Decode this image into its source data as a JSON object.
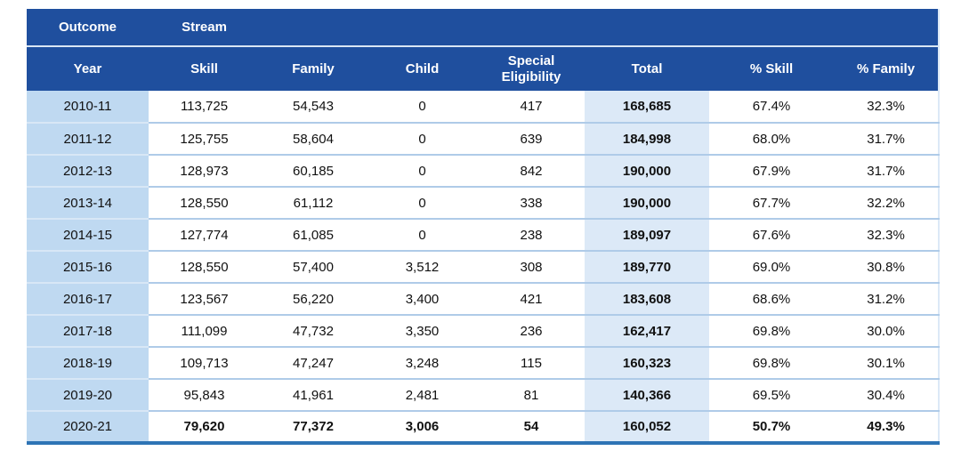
{
  "colors": {
    "header_bg": "#1F4F9E",
    "header_text": "#FFFFFF",
    "header_divider": "#D9E6F4",
    "year_col_bg": "#BFD9F1",
    "total_col_bg": "#DCE9F7",
    "row_divider": "#AFCBE8",
    "bottom_border": "#2E74B5",
    "body_text": "#111111"
  },
  "table": {
    "group_header": {
      "outcome": "Outcome",
      "stream": "Stream"
    },
    "columns": [
      "Year",
      "Skill",
      "Family",
      "Child",
      "Special Eligibility",
      "Total",
      "% Skill",
      "% Family"
    ],
    "rows": [
      {
        "cells": [
          "2010-11",
          "113,725",
          "54,543",
          "0",
          "417",
          "168,685",
          "67.4%",
          "32.3%"
        ],
        "bold": false
      },
      {
        "cells": [
          "2011-12",
          "125,755",
          "58,604",
          "0",
          "639",
          "184,998",
          "68.0%",
          "31.7%"
        ],
        "bold": false
      },
      {
        "cells": [
          "2012-13",
          "128,973",
          "60,185",
          "0",
          "842",
          "190,000",
          "67.9%",
          "31.7%"
        ],
        "bold": false
      },
      {
        "cells": [
          "2013-14",
          "128,550",
          "61,112",
          "0",
          "338",
          "190,000",
          "67.7%",
          "32.2%"
        ],
        "bold": false
      },
      {
        "cells": [
          "2014-15",
          "127,774",
          "61,085",
          "0",
          "238",
          "189,097",
          "67.6%",
          "32.3%"
        ],
        "bold": false
      },
      {
        "cells": [
          "2015-16",
          "128,550",
          "57,400",
          "3,512",
          "308",
          "189,770",
          "69.0%",
          "30.8%"
        ],
        "bold": false
      },
      {
        "cells": [
          "2016-17",
          "123,567",
          "56,220",
          "3,400",
          "421",
          "183,608",
          "68.6%",
          "31.2%"
        ],
        "bold": false
      },
      {
        "cells": [
          "2017-18",
          "111,099",
          "47,732",
          "3,350",
          "236",
          "162,417",
          "69.8%",
          "30.0%"
        ],
        "bold": false
      },
      {
        "cells": [
          "2018-19",
          "109,713",
          "47,247",
          "3,248",
          "115",
          "160,323",
          "69.8%",
          "30.1%"
        ],
        "bold": false
      },
      {
        "cells": [
          "2019-20",
          "95,843",
          "41,961",
          "2,481",
          "81",
          "140,366",
          "69.5%",
          "30.4%"
        ],
        "bold": false
      },
      {
        "cells": [
          "2020-21",
          "79,620",
          "77,372",
          "3,006",
          "54",
          "160,052",
          "50.7%",
          "49.3%"
        ],
        "bold": true
      }
    ]
  }
}
